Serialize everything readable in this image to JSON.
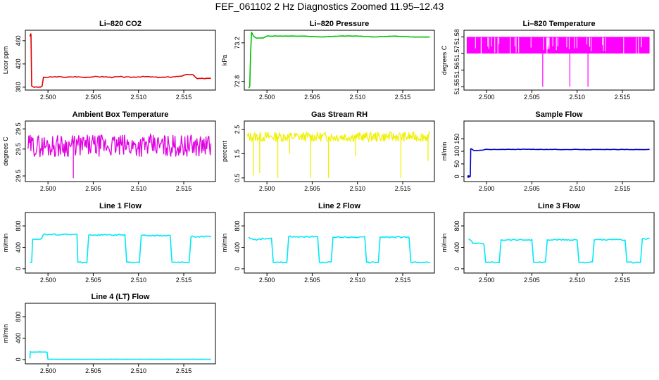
{
  "title": "FEF_061102  2 Hz Diagnostics Zoomed 11.95–12.43",
  "chart_data": [
    {
      "id": "co2",
      "type": "line",
      "title": "Li–820 CO2",
      "ylabel": "Licor ppm",
      "color": "#e00000",
      "ylim": [
        375,
        478
      ],
      "yticks": [
        "380",
        "420",
        "460"
      ],
      "xlim": [
        2.4975,
        2.5185
      ],
      "xticks": [
        "2.500",
        "2.505",
        "2.510",
        "2.515"
      ],
      "x": [
        2.498,
        2.49805,
        2.4981,
        2.49812,
        2.4982,
        2.4985,
        2.499,
        2.49935,
        2.4995,
        2.5,
        2.501,
        2.502,
        2.503,
        2.504,
        2.505,
        2.506,
        2.507,
        2.508,
        2.509,
        2.51,
        2.511,
        2.512,
        2.513,
        2.514,
        2.515,
        2.5155,
        2.516,
        2.5165,
        2.517,
        2.518
      ],
      "values": [
        470,
        468,
        472,
        470,
        382,
        380,
        380,
        381,
        397,
        397,
        398,
        397,
        398,
        397,
        398,
        398,
        397,
        398,
        397,
        398,
        398,
        397,
        397,
        398,
        400,
        402,
        401,
        395,
        395,
        395
      ]
    },
    {
      "id": "pressure",
      "type": "line",
      "title": "Li–820 Pressure",
      "ylabel": "kPa",
      "color": "#00c000",
      "ylim": [
        72.71,
        73.33
      ],
      "yticks": [
        "72.8",
        "73.2"
      ],
      "xlim": [
        2.4975,
        2.5185
      ],
      "xticks": [
        "2.500",
        "2.505",
        "2.510",
        "2.515"
      ],
      "x": [
        2.498,
        2.4981,
        2.4982,
        2.4983,
        2.4985,
        2.4988,
        2.4992,
        2.4996,
        2.5,
        2.501,
        2.502,
        2.504,
        2.506,
        2.508,
        2.51,
        2.512,
        2.514,
        2.516,
        2.518
      ],
      "values": [
        72.73,
        72.75,
        73.1,
        73.31,
        73.27,
        73.25,
        73.25,
        73.25,
        73.27,
        73.27,
        73.27,
        73.27,
        73.26,
        73.27,
        73.27,
        73.26,
        73.27,
        73.26,
        73.26
      ]
    },
    {
      "id": "temperature",
      "type": "area",
      "title": "Li–820 Temperature",
      "ylabel": "degrees C",
      "color": "#ff00ff",
      "ylim": [
        51.548,
        51.584
      ],
      "yticks": [
        "51.55",
        "51.56",
        "51.57",
        "51.58"
      ],
      "xlim": [
        2.4975,
        2.5185
      ],
      "xticks": [
        "2.500",
        "2.505",
        "2.510",
        "2.515"
      ],
      "band": [
        51.57,
        51.58
      ],
      "spikes_x": [
        2.5062,
        2.5092,
        2.5112
      ],
      "spikes_to": [
        51.55,
        51.55,
        51.55
      ]
    },
    {
      "id": "ambient",
      "type": "line",
      "title": "Ambient Box Temperature",
      "ylabel": "degrees C",
      "color": "#e000e0",
      "ylim": [
        29.33,
        29.87
      ],
      "yticks": [
        "29.5",
        "29.5",
        "29.5"
      ],
      "xlim": [
        2.4975,
        2.5185
      ],
      "xticks": [
        "2.500",
        "2.505",
        "2.510",
        "2.515"
      ],
      "range": [
        29.55,
        29.75
      ],
      "dips_x": [
        2.5028
      ],
      "dips_to": [
        29.36
      ]
    },
    {
      "id": "rh",
      "type": "line",
      "title": "Gas Stream RH",
      "ylabel": "percent",
      "color": "#f0f000",
      "ylim": [
        0.35,
        2.85
      ],
      "yticks": [
        "0.5",
        "1.5",
        "2.5"
      ],
      "xlim": [
        2.4975,
        2.5185
      ],
      "xticks": [
        "2.500",
        "2.505",
        "2.510",
        "2.515"
      ],
      "range": [
        2.0,
        2.4
      ],
      "dips_x": [
        2.4985,
        2.4992,
        2.5012,
        2.5025,
        2.5048,
        2.5068,
        2.5098,
        2.5148,
        2.5178
      ],
      "dips_to": [
        0.6,
        0.7,
        0.5,
        1.5,
        0.5,
        0.5,
        1.4,
        0.5,
        1.2
      ]
    },
    {
      "id": "sample",
      "type": "line",
      "title": "Sample Flow",
      "ylabel": "ml/min",
      "color": "#0000c8",
      "ylim": [
        -20,
        220
      ],
      "yticks": [
        "0",
        "50",
        "100",
        "150"
      ],
      "xlim": [
        2.4975,
        2.5185
      ],
      "xticks": [
        "2.500",
        "2.505",
        "2.510",
        "2.515"
      ],
      "x": [
        2.498,
        2.4982,
        2.49825,
        2.4983,
        2.4986,
        2.4995,
        2.5,
        2.501,
        2.504,
        2.508,
        2.512,
        2.516,
        2.518
      ],
      "values": [
        0,
        0,
        110,
        110,
        103,
        104,
        108,
        107,
        108,
        107,
        107,
        107,
        107
      ]
    },
    {
      "id": "line1",
      "type": "line",
      "title": "Line 1 Flow",
      "ylabel": "ml/min",
      "color": "#00e8f8",
      "ylim": [
        -80,
        1050
      ],
      "yticks": [
        "0",
        "400",
        "800"
      ],
      "xlim": [
        2.4975,
        2.5185
      ],
      "xticks": [
        "2.500",
        "2.505",
        "2.510",
        "2.515"
      ],
      "x": [
        2.498,
        2.4982,
        2.4983,
        2.4993,
        2.4995,
        2.5032,
        2.5033,
        2.5043,
        2.5045,
        2.5085,
        2.5087,
        2.5101,
        2.5103,
        2.5135,
        2.5137,
        2.5156,
        2.5158,
        2.518
      ],
      "values": [
        120,
        120,
        550,
        560,
        640,
        640,
        120,
        120,
        630,
        630,
        120,
        120,
        620,
        620,
        120,
        120,
        600,
        600
      ]
    },
    {
      "id": "line2",
      "type": "line",
      "title": "Line 2 Flow",
      "ylabel": "ml/min",
      "color": "#00e8f8",
      "ylim": [
        -80,
        1050
      ],
      "yticks": [
        "0",
        "400",
        "800"
      ],
      "xlim": [
        2.4975,
        2.5185
      ],
      "xticks": [
        "2.500",
        "2.505",
        "2.510",
        "2.515"
      ],
      "x": [
        2.498,
        2.4985,
        2.499,
        2.4995,
        2.5005,
        2.5007,
        2.5022,
        2.5024,
        2.5056,
        2.5058,
        2.5071,
        2.5073,
        2.5108,
        2.511,
        2.5123,
        2.5125,
        2.5157,
        2.5159,
        2.5178,
        2.518
      ],
      "values": [
        590,
        540,
        540,
        560,
        560,
        120,
        120,
        600,
        600,
        120,
        120,
        590,
        590,
        120,
        120,
        590,
        590,
        120,
        120,
        120
      ]
    },
    {
      "id": "line3",
      "type": "line",
      "title": "Line 3 Flow",
      "ylabel": "ml/min",
      "color": "#00e8f8",
      "ylim": [
        -80,
        1050
      ],
      "yticks": [
        "0",
        "400",
        "800"
      ],
      "xlim": [
        2.4975,
        2.5185
      ],
      "xticks": [
        "2.500",
        "2.505",
        "2.510",
        "2.515"
      ],
      "x": [
        2.498,
        2.4985,
        2.499,
        2.4997,
        2.4999,
        2.5014,
        2.5016,
        2.505,
        2.5052,
        2.5065,
        2.5067,
        2.51,
        2.5102,
        2.5117,
        2.5119,
        2.5153,
        2.5155,
        2.517,
        2.5172,
        2.518
      ],
      "values": [
        560,
        480,
        470,
        470,
        120,
        120,
        540,
        540,
        120,
        120,
        540,
        540,
        120,
        120,
        540,
        540,
        120,
        120,
        560,
        560
      ]
    },
    {
      "id": "line4",
      "type": "line",
      "title": "Line 4 (LT) Flow",
      "ylabel": "ml/min",
      "color": "#00e8f8",
      "ylim": [
        -80,
        1050
      ],
      "yticks": [
        "0",
        "400",
        "800"
      ],
      "xlim": [
        2.4975,
        2.5185
      ],
      "xticks": [
        "2.500",
        "2.505",
        "2.510",
        "2.515"
      ],
      "x": [
        2.498,
        2.49805,
        2.4981,
        2.499,
        2.4999,
        2.5,
        2.504,
        2.508,
        2.512,
        2.516,
        2.518
      ],
      "values": [
        20,
        150,
        140,
        140,
        140,
        5,
        5,
        5,
        5,
        5,
        5
      ]
    }
  ]
}
